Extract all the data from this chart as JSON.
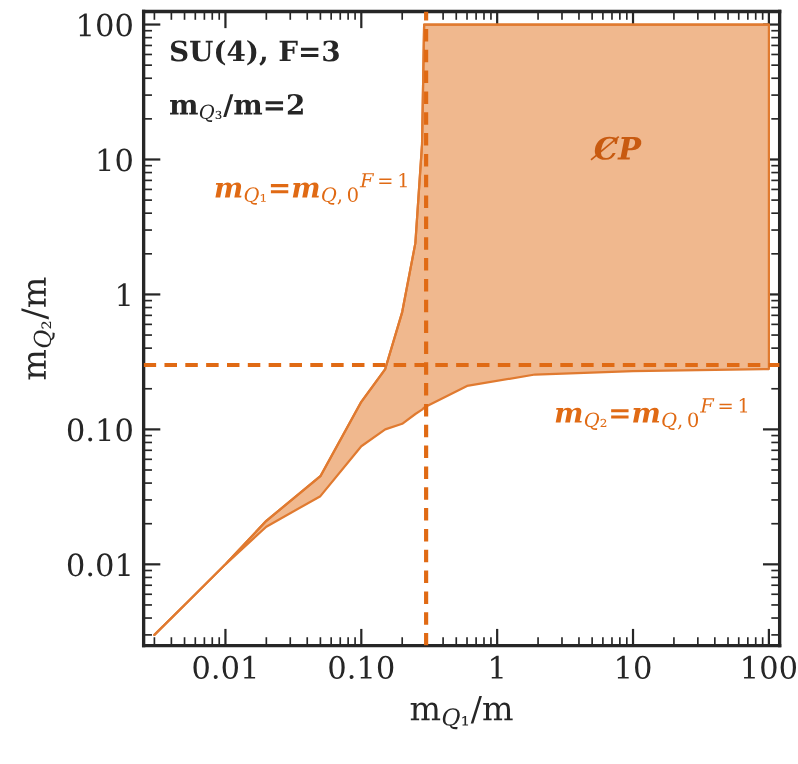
{
  "chart_data": {
    "type": "line",
    "xlabel": "m$_{Q₁}$/m",
    "ylabel": "m$_{Q₂}$/m",
    "log": "xy",
    "xlim": [
      0.0025,
      120
    ],
    "ylim": [
      0.0025,
      125
    ],
    "xticks": [
      0.01,
      {
        "value": 0.1,
        "label": "0.10"
      },
      1,
      10,
      100
    ],
    "yticks": [
      0.01,
      {
        "value": 0.1,
        "label": "0.10"
      },
      1,
      10,
      100
    ],
    "x": [
      0.003,
      0.005,
      0.01,
      0.02,
      0.05,
      0.1,
      0.15,
      0.2,
      0.25,
      0.28,
      0.29,
      0.3,
      0.6,
      1.9,
      10,
      100
    ],
    "series": [
      {
        "color": "#e07a30",
        "values": [
          0.003,
          0.005,
          0.01,
          0.021,
          0.045,
          0.16,
          0.28,
          0.74,
          2.4,
          13,
          100,
          100,
          100,
          100,
          100,
          100
        ],
        "upper": [
          0.003,
          0.005,
          0.01,
          0.021,
          0.045,
          0.16,
          0.28,
          0.74,
          2.4,
          13,
          100,
          100,
          100,
          100,
          100,
          100
        ],
        "lower": [
          0.003,
          0.005,
          0.01,
          0.019,
          0.032,
          0.075,
          0.1,
          0.11,
          0.13,
          0.14,
          0.145,
          0.148,
          0.21,
          0.255,
          0.27,
          0.28
        ]
      }
    ],
    "ref_lines": [
      {
        "axis": "x",
        "value": 0.3,
        "label": "m$_{Q₁}$=m$_{Q,0}$$^{F=1}$",
        "color": "#e06a14",
        "line_style": "dashed"
      },
      {
        "axis": "y",
        "value": 0.3,
        "label": "m$_{Q₂}$=m$_{Q,0}$$^{F=1}$",
        "color": "#e06a14",
        "line_style": "dashed"
      }
    ],
    "annotations": [
      "SU(4), F=3",
      "m$_{Q₃}$/m=2",
      "C̸P"
    ],
    "grid": false
  }
}
